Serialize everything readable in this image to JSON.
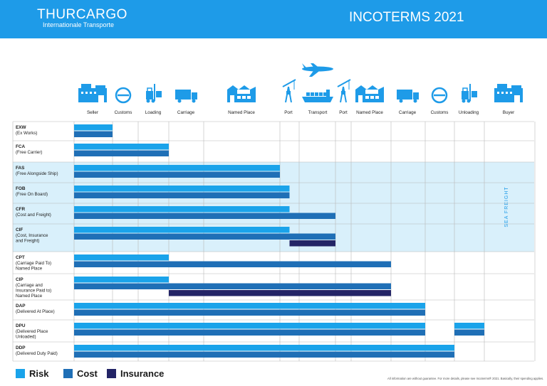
{
  "header": {
    "brand": "THURCARGO",
    "brand_sub": "Internationale Transporte",
    "title": "INCOTERMS 2021"
  },
  "columns": [
    {
      "label": "Seller",
      "icon": "factory-icon"
    },
    {
      "label": "Customs",
      "icon": "customs-icon"
    },
    {
      "label": "Loading",
      "icon": "forklift-icon"
    },
    {
      "label": "Carriage",
      "icon": "truck-icon"
    },
    {
      "label": "Named Place",
      "icon": "cargo-warehouse-icon"
    },
    {
      "label": "Port",
      "icon": "port-crane-icon"
    },
    {
      "label": "Transport",
      "icon": "ship-icon"
    },
    {
      "label": "Port",
      "icon": "port-crane-icon"
    },
    {
      "label": "Named Place",
      "icon": "cargo-warehouse-icon"
    },
    {
      "label": "Carriage",
      "icon": "truck-icon"
    },
    {
      "label": "Customs",
      "icon": "customs-icon"
    },
    {
      "label": "Unloading",
      "icon": "forklift-icon"
    },
    {
      "label": "Buyer",
      "icon": "factory-icon"
    }
  ],
  "airplane_icon": "airplane-icon",
  "sea_freight_label": "SEA FREIGHT",
  "legend": {
    "risk": "Risk",
    "cost": "Cost",
    "insurance": "Insurance"
  },
  "colors": {
    "header": "#1e9be8",
    "risk": "#1aa3ea",
    "cost": "#1f6fb6",
    "insurance": "#232466",
    "sea_band": "#d9f0fb",
    "icon": "#1e9be8"
  },
  "terms": [
    {
      "code": "EXW",
      "name": [
        "(Ex Works)"
      ],
      "sea": false,
      "bars": [
        {
          "type": "risk",
          "from": 0,
          "to": 1
        },
        {
          "type": "cost",
          "from": 0,
          "to": 1
        }
      ]
    },
    {
      "code": "FCA",
      "name": [
        "(Free Carrier)"
      ],
      "sea": false,
      "bars": [
        {
          "type": "risk",
          "from": 0,
          "to": 3
        },
        {
          "type": "cost",
          "from": 0,
          "to": 3
        }
      ]
    },
    {
      "code": "FAS",
      "name": [
        "(Free Alongside Ship)"
      ],
      "sea": true,
      "bars": [
        {
          "type": "risk",
          "from": 0,
          "to": 5
        },
        {
          "type": "cost",
          "from": 0,
          "to": 5
        }
      ]
    },
    {
      "code": "FOB",
      "name": [
        "(Free On Board)"
      ],
      "sea": true,
      "bars": [
        {
          "type": "risk",
          "from": 0,
          "to": 5.5
        },
        {
          "type": "cost",
          "from": 0,
          "to": 5.5
        }
      ]
    },
    {
      "code": "CFR",
      "name": [
        "(Cost and Freight)"
      ],
      "sea": true,
      "bars": [
        {
          "type": "risk",
          "from": 0,
          "to": 5.5
        },
        {
          "type": "cost",
          "from": 0,
          "to": 7
        }
      ]
    },
    {
      "code": "CIF",
      "name": [
        "(Cost, Insurance",
        " and Freight)"
      ],
      "sea": true,
      "bars": [
        {
          "type": "risk",
          "from": 0,
          "to": 5.5
        },
        {
          "type": "cost",
          "from": 0,
          "to": 7
        },
        {
          "type": "insurance",
          "from": 5.5,
          "to": 7
        }
      ]
    },
    {
      "code": "CPT",
      "name": [
        "(Carriage Paid To)",
        "Named Place"
      ],
      "sea": false,
      "bars": [
        {
          "type": "risk",
          "from": 0,
          "to": 3
        },
        {
          "type": "cost",
          "from": 0,
          "to": 9
        }
      ]
    },
    {
      "code": "CIP",
      "name": [
        "(Carriage and",
        "Insurance Paid to)",
        "Named Place"
      ],
      "sea": false,
      "bars": [
        {
          "type": "risk",
          "from": 0,
          "to": 3
        },
        {
          "type": "cost",
          "from": 0,
          "to": 9
        },
        {
          "type": "insurance",
          "from": 3,
          "to": 9
        }
      ]
    },
    {
      "code": "DAP",
      "name": [
        "(Delivered At Place)"
      ],
      "sea": false,
      "bars": [
        {
          "type": "risk",
          "from": 0,
          "to": 10
        },
        {
          "type": "cost",
          "from": 0,
          "to": 10
        }
      ]
    },
    {
      "code": "DPU",
      "name": [
        "(Delivered Place",
        "Unloaded)"
      ],
      "sea": false,
      "bars": [
        {
          "type": "risk",
          "from": 0,
          "to": 10
        },
        {
          "type": "cost",
          "from": 0,
          "to": 10
        },
        {
          "type": "risk",
          "from": 11,
          "to": 12
        },
        {
          "type": "cost",
          "from": 11,
          "to": 12
        }
      ]
    },
    {
      "code": "DDP",
      "name": [
        "(Delivered Duty Paid)"
      ],
      "sea": false,
      "bars": [
        {
          "type": "risk",
          "from": 0,
          "to": 11
        },
        {
          "type": "cost",
          "from": 0,
          "to": 11
        }
      ]
    }
  ],
  "footnote": "All information are without guarantee. For more details, please see Incoterms® 2021. Basically, their spending applies."
}
